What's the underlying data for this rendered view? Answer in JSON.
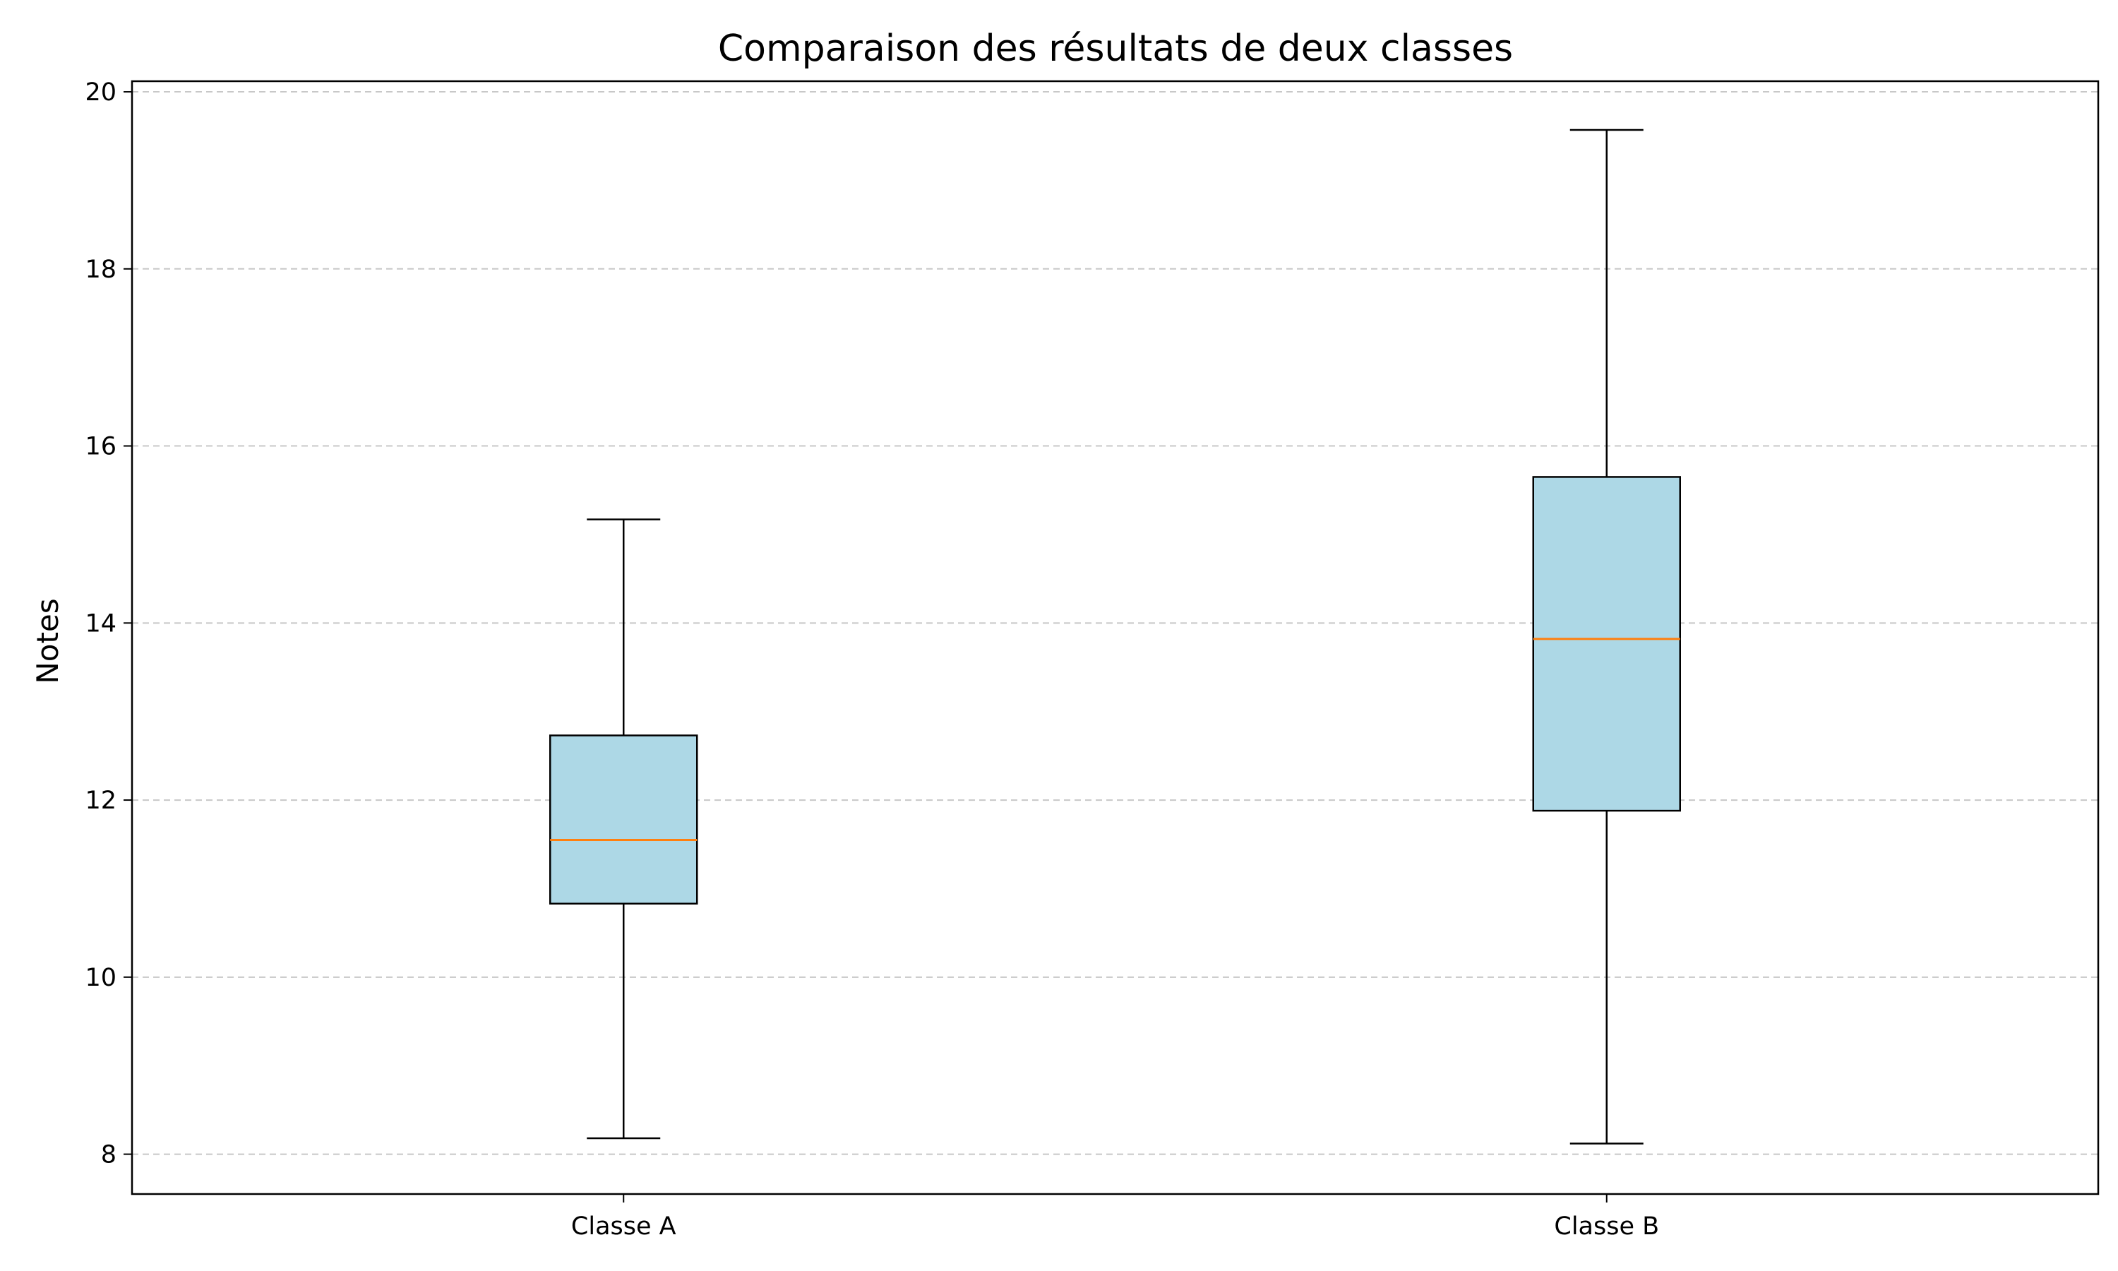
{
  "chart_data": {
    "type": "boxplot",
    "title": "Comparaison des résultats de deux classes",
    "xlabel": "",
    "ylabel": "Notes",
    "categories": [
      "Classe A",
      "Classe B"
    ],
    "boxes": [
      {
        "category": "Classe A",
        "whisker_low": 8.18,
        "q1": 10.83,
        "median": 11.55,
        "q3": 12.73,
        "whisker_high": 15.17
      },
      {
        "category": "Classe B",
        "whisker_low": 8.12,
        "q1": 11.88,
        "median": 13.82,
        "q3": 15.65,
        "whisker_high": 19.57
      }
    ],
    "ylim": [
      7.55,
      20.12
    ],
    "yticks": [
      8,
      10,
      12,
      14,
      16,
      18,
      20
    ],
    "grid": {
      "axis": "y",
      "style": "dashed",
      "color": "#c8c8c8"
    },
    "colors": {
      "box_fill": "#add8e6",
      "box_edge": "#000000",
      "median": "#ff7f0e",
      "whisker": "#000000",
      "grid": "#c8c8c8"
    }
  }
}
